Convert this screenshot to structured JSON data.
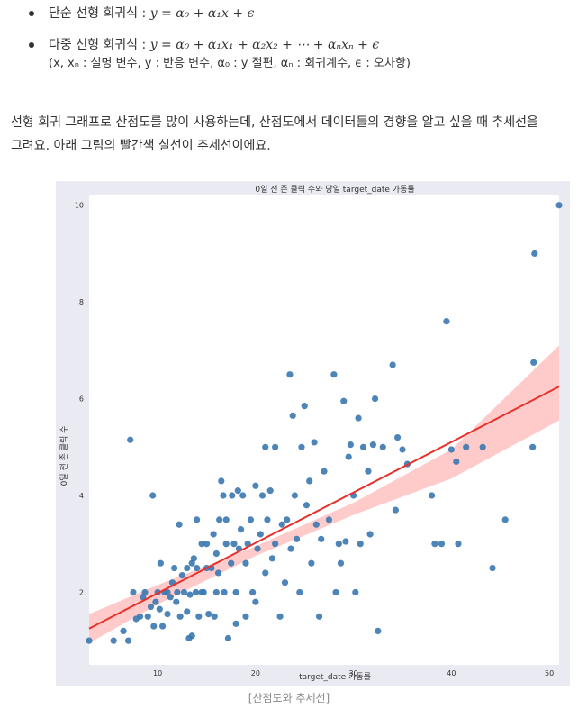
{
  "bullets": [
    {
      "label": "단순 선형 회귀식 : ",
      "formula": "y = α₀ + α₁x + ϵ"
    },
    {
      "label": "다중 선형 회귀식 : ",
      "formula": "y = α₀ + α₁x₁ + α₂x₂ + ⋯ + αₙxₙ + ϵ",
      "note": "(x, xₙ : 설명 변수, y : 반응 변수, α₀ : y 절편, αₙ : 회귀계수, ϵ : 오차항)"
    }
  ],
  "paragraph": {
    "line1": "선형 회귀 그래프로 산점도를 많이 사용하는데, 산점도에서 데이터들의 경향을 알고 싶을 때 추세선을",
    "line2": "그려요. 아래 그림의 빨간색 실선이 추세선이에요."
  },
  "caption": "[산점도와 추세선]",
  "colors": {
    "points": "#3a78b0",
    "trend": "#e8312a",
    "band": "#ffb3b3",
    "figure_bg": "#eaeaf2"
  },
  "chart_data": {
    "type": "scatter",
    "title": "0일 전 존 클릭 수와 당일 target_date 가동률",
    "xlabel": "target_date 가동률",
    "ylabel": "0일 전 존 클릭 수",
    "xlim": [
      3,
      51
    ],
    "ylim": [
      0.5,
      10.2
    ],
    "xticks": [
      10,
      20,
      30,
      40,
      50
    ],
    "yticks": [
      2,
      4,
      6,
      8,
      10
    ],
    "grid": false,
    "trend_line": {
      "x": [
        3,
        51
      ],
      "y": [
        1.25,
        6.25
      ]
    },
    "confidence_band": {
      "x": [
        3,
        10,
        20,
        30,
        40,
        51
      ],
      "upper": [
        1.55,
        2.15,
        2.95,
        3.85,
        4.95,
        7.1
      ],
      "lower": [
        0.95,
        1.75,
        2.75,
        3.6,
        4.35,
        5.55
      ]
    },
    "points": [
      [
        3.0,
        1.0
      ],
      [
        5.5,
        1.0
      ],
      [
        6.5,
        1.2
      ],
      [
        7.0,
        1.0
      ],
      [
        7.2,
        5.15
      ],
      [
        7.5,
        2.0
      ],
      [
        7.8,
        1.45
      ],
      [
        8.2,
        1.5
      ],
      [
        8.5,
        1.9
      ],
      [
        8.7,
        2.0
      ],
      [
        9.0,
        1.5
      ],
      [
        9.3,
        1.7
      ],
      [
        9.5,
        4.0
      ],
      [
        9.6,
        1.3
      ],
      [
        9.8,
        1.8
      ],
      [
        10.0,
        2.0
      ],
      [
        10.2,
        1.65
      ],
      [
        10.3,
        2.6
      ],
      [
        10.5,
        1.3
      ],
      [
        10.7,
        2.0
      ],
      [
        11.0,
        2.0
      ],
      [
        11.0,
        1.55
      ],
      [
        11.3,
        1.9
      ],
      [
        11.5,
        2.2
      ],
      [
        11.7,
        2.5
      ],
      [
        11.9,
        1.8
      ],
      [
        12.0,
        2.0
      ],
      [
        12.2,
        3.4
      ],
      [
        12.3,
        1.5
      ],
      [
        12.5,
        2.35
      ],
      [
        12.7,
        2.0
      ],
      [
        13.0,
        1.6
      ],
      [
        13.0,
        2.5
      ],
      [
        13.2,
        1.05
      ],
      [
        13.3,
        1.95
      ],
      [
        13.5,
        2.6
      ],
      [
        13.5,
        1.1
      ],
      [
        13.7,
        2.7
      ],
      [
        13.9,
        2.0
      ],
      [
        14.0,
        2.5
      ],
      [
        14.0,
        3.5
      ],
      [
        14.2,
        1.5
      ],
      [
        14.5,
        2.0
      ],
      [
        14.5,
        3.0
      ],
      [
        14.7,
        2.0
      ],
      [
        15.0,
        2.5
      ],
      [
        15.0,
        3.0
      ],
      [
        15.2,
        1.55
      ],
      [
        15.5,
        2.5
      ],
      [
        15.7,
        3.2
      ],
      [
        15.8,
        1.5
      ],
      [
        16.0,
        2.8
      ],
      [
        16.0,
        2.0
      ],
      [
        16.2,
        2.4
      ],
      [
        16.3,
        3.5
      ],
      [
        16.5,
        4.3
      ],
      [
        16.7,
        4.0
      ],
      [
        16.8,
        2.0
      ],
      [
        17.0,
        3.0
      ],
      [
        17.0,
        3.5
      ],
      [
        17.2,
        1.05
      ],
      [
        17.5,
        2.6
      ],
      [
        17.6,
        4.0
      ],
      [
        17.8,
        3.0
      ],
      [
        18.0,
        2.0
      ],
      [
        18.0,
        1.35
      ],
      [
        18.2,
        4.1
      ],
      [
        18.3,
        2.9
      ],
      [
        18.5,
        3.3
      ],
      [
        18.7,
        4.0
      ],
      [
        19.0,
        1.5
      ],
      [
        19.0,
        2.6
      ],
      [
        19.2,
        3.0
      ],
      [
        19.5,
        3.5
      ],
      [
        19.7,
        2.0
      ],
      [
        20.0,
        4.2
      ],
      [
        20.0,
        1.8
      ],
      [
        20.2,
        2.9
      ],
      [
        20.5,
        3.2
      ],
      [
        20.7,
        4.0
      ],
      [
        21.0,
        5.0
      ],
      [
        21.0,
        2.4
      ],
      [
        21.2,
        3.5
      ],
      [
        21.5,
        4.1
      ],
      [
        21.7,
        2.7
      ],
      [
        22.0,
        3.0
      ],
      [
        22.0,
        5.0
      ],
      [
        22.5,
        1.5
      ],
      [
        22.7,
        3.4
      ],
      [
        23.0,
        2.2
      ],
      [
        23.2,
        3.5
      ],
      [
        23.5,
        6.5
      ],
      [
        23.6,
        2.9
      ],
      [
        23.8,
        5.65
      ],
      [
        24.0,
        4.0
      ],
      [
        24.2,
        3.1
      ],
      [
        24.5,
        2.0
      ],
      [
        24.7,
        5.0
      ],
      [
        25.0,
        5.85
      ],
      [
        25.2,
        3.8
      ],
      [
        25.5,
        4.3
      ],
      [
        25.7,
        2.6
      ],
      [
        26.0,
        5.1
      ],
      [
        26.2,
        3.4
      ],
      [
        26.5,
        1.5
      ],
      [
        26.7,
        3.1
      ],
      [
        27.0,
        4.5
      ],
      [
        27.5,
        3.5
      ],
      [
        28.0,
        6.5
      ],
      [
        28.2,
        2.0
      ],
      [
        28.5,
        3.0
      ],
      [
        28.7,
        2.6
      ],
      [
        29.0,
        5.95
      ],
      [
        29.2,
        3.05
      ],
      [
        29.5,
        4.8
      ],
      [
        29.7,
        5.05
      ],
      [
        30.0,
        4.0
      ],
      [
        30.2,
        2.0
      ],
      [
        30.5,
        5.6
      ],
      [
        30.7,
        3.0
      ],
      [
        31.0,
        5.0
      ],
      [
        31.5,
        4.5
      ],
      [
        31.7,
        3.2
      ],
      [
        32.0,
        5.05
      ],
      [
        32.2,
        6.0
      ],
      [
        32.5,
        1.2
      ],
      [
        33.0,
        5.0
      ],
      [
        34.0,
        6.7
      ],
      [
        34.3,
        3.7
      ],
      [
        34.5,
        5.2
      ],
      [
        35.0,
        4.95
      ],
      [
        35.5,
        4.65
      ],
      [
        38.0,
        4.0
      ],
      [
        38.3,
        3.0
      ],
      [
        39.0,
        3.0
      ],
      [
        39.5,
        7.6
      ],
      [
        40.0,
        4.95
      ],
      [
        40.5,
        4.7
      ],
      [
        40.7,
        3.0
      ],
      [
        41.5,
        5.0
      ],
      [
        43.2,
        5.0
      ],
      [
        44.2,
        2.5
      ],
      [
        45.5,
        3.5
      ],
      [
        48.3,
        5.0
      ],
      [
        48.4,
        6.75
      ],
      [
        48.5,
        9.0
      ],
      [
        51.0,
        10.0
      ]
    ]
  }
}
